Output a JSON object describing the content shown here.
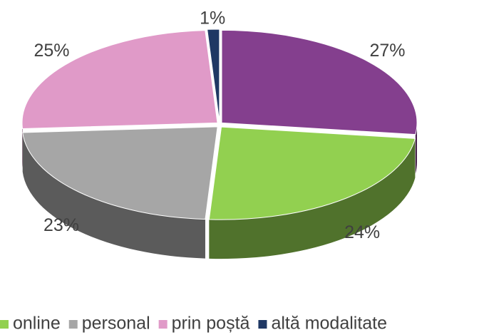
{
  "chart_data": {
    "type": "pie3d",
    "categories": [
      null,
      "online",
      "personal",
      "prin poștă",
      "altă modalitate"
    ],
    "values": [
      27,
      24,
      23,
      25,
      1
    ],
    "value_labels": [
      "27%",
      "24%",
      "23%",
      "25%",
      "1%"
    ],
    "colors": [
      "#843f8e",
      "#92d050",
      "#a6a6a6",
      "#e09ac8",
      "#1f3864"
    ],
    "legend": "bottom"
  }
}
